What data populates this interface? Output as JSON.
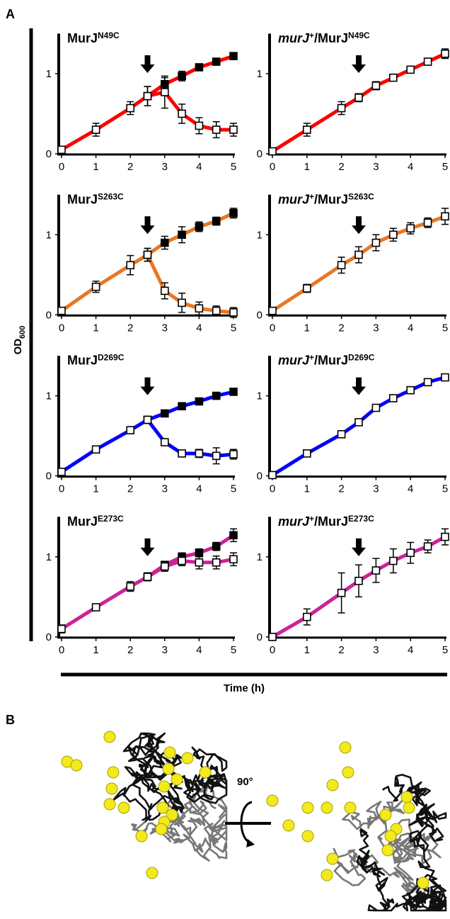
{
  "figure": {
    "panel_labels": [
      "A",
      "B"
    ],
    "y_label": {
      "text": "OD",
      "sub": "600"
    },
    "x_label": "Time (h)",
    "rotation_label": "90°"
  },
  "chart_data": [
    {
      "type": "line",
      "title_parts": [
        {
          "text": "MurJ"
        },
        {
          "text": "N49C",
          "sup": true
        }
      ],
      "x": [
        0,
        1,
        2,
        2.5,
        3,
        3.5,
        4,
        4.5,
        5
      ],
      "xlim": [
        0,
        5
      ],
      "ylim": [
        0,
        1.5
      ],
      "xticks": [
        0,
        1,
        2,
        3,
        4,
        5
      ],
      "yticks": [
        0,
        1
      ],
      "arrow_x": 2.5,
      "color": "#ff0000",
      "series": [
        {
          "marker": "filled",
          "values": [
            null,
            null,
            null,
            0.72,
            0.87,
            0.97,
            1.08,
            1.15,
            1.22
          ],
          "errors": [
            null,
            null,
            null,
            0.12,
            0.08,
            0.06,
            0.04,
            0.03,
            0.03
          ]
        },
        {
          "marker": "open",
          "values": [
            0.05,
            0.3,
            0.57,
            0.72,
            0.77,
            0.5,
            0.35,
            0.3,
            0.3
          ],
          "errors": [
            0.04,
            0.08,
            0.08,
            0.12,
            0.2,
            0.12,
            0.1,
            0.1,
            0.08
          ]
        }
      ]
    },
    {
      "type": "line",
      "title_parts": [
        {
          "text": "murJ",
          "italic": true
        },
        {
          "text": "+",
          "sup": true
        },
        {
          "text": "/MurJ"
        },
        {
          "text": "N49C",
          "sup": true
        }
      ],
      "x": [
        0,
        1,
        2,
        2.5,
        3,
        3.5,
        4,
        4.5,
        5
      ],
      "xlim": [
        0,
        5
      ],
      "ylim": [
        0,
        1.5
      ],
      "xticks": [
        0,
        1,
        2,
        3,
        4,
        5
      ],
      "yticks": [
        0,
        1
      ],
      "arrow_x": 2.5,
      "color": "#ff0000",
      "series": [
        {
          "marker": "open",
          "values": [
            0.03,
            0.3,
            0.57,
            0.7,
            0.85,
            0.95,
            1.05,
            1.15,
            1.25
          ],
          "errors": [
            0.04,
            0.08,
            0.08,
            0.05,
            0.05,
            0.04,
            0.04,
            0.03,
            0.06
          ]
        }
      ]
    },
    {
      "type": "line",
      "title_parts": [
        {
          "text": "MurJ"
        },
        {
          "text": "S263C",
          "sup": true
        }
      ],
      "x": [
        0,
        1,
        2,
        2.5,
        3,
        3.5,
        4,
        4.5,
        5
      ],
      "xlim": [
        0,
        5
      ],
      "ylim": [
        0,
        1.5
      ],
      "xticks": [
        0,
        1,
        2,
        3,
        4,
        5
      ],
      "yticks": [
        0,
        1
      ],
      "arrow_x": 2.5,
      "color": "#e87722",
      "series": [
        {
          "marker": "filled",
          "values": [
            null,
            null,
            null,
            0.75,
            0.9,
            1.0,
            1.1,
            1.17,
            1.27
          ],
          "errors": [
            null,
            null,
            null,
            0.08,
            0.08,
            0.1,
            0.06,
            0.05,
            0.06
          ]
        },
        {
          "marker": "open",
          "values": [
            0.05,
            0.35,
            0.62,
            0.75,
            0.3,
            0.15,
            0.08,
            0.05,
            0.03
          ],
          "errors": [
            0.03,
            0.07,
            0.12,
            0.08,
            0.1,
            0.12,
            0.08,
            0.06,
            0.06
          ]
        }
      ]
    },
    {
      "type": "line",
      "title_parts": [
        {
          "text": "murJ",
          "italic": true
        },
        {
          "text": "+",
          "sup": true
        },
        {
          "text": "/MurJ"
        },
        {
          "text": "S263C",
          "sup": true
        }
      ],
      "x": [
        0,
        1,
        2,
        2.5,
        3,
        3.5,
        4,
        4.5,
        5
      ],
      "xlim": [
        0,
        5
      ],
      "ylim": [
        0,
        1.5
      ],
      "xticks": [
        0,
        1,
        2,
        3,
        4,
        5
      ],
      "yticks": [
        0,
        1
      ],
      "arrow_x": 2.5,
      "color": "#e87722",
      "series": [
        {
          "marker": "open",
          "values": [
            0.05,
            0.33,
            0.62,
            0.75,
            0.9,
            1.0,
            1.08,
            1.15,
            1.23
          ],
          "errors": [
            0.03,
            0.05,
            0.1,
            0.1,
            0.1,
            0.08,
            0.07,
            0.06,
            0.1
          ]
        }
      ]
    },
    {
      "type": "line",
      "title_parts": [
        {
          "text": "MurJ"
        },
        {
          "text": "D269C",
          "sup": true
        }
      ],
      "x": [
        0,
        1,
        2,
        2.5,
        3,
        3.5,
        4,
        4.5,
        5
      ],
      "xlim": [
        0,
        5
      ],
      "ylim": [
        0,
        1.5
      ],
      "xticks": [
        0,
        1,
        2,
        3,
        4,
        5
      ],
      "yticks": [
        0,
        1
      ],
      "arrow_x": 2.5,
      "color": "#0000ff",
      "series": [
        {
          "marker": "filled",
          "values": [
            null,
            null,
            null,
            0.7,
            0.78,
            0.87,
            0.93,
            1.0,
            1.05
          ],
          "errors": [
            null,
            null,
            null,
            0.03,
            0.04,
            0.04,
            0.04,
            0.03,
            0.03
          ]
        },
        {
          "marker": "open",
          "values": [
            0.05,
            0.33,
            0.57,
            0.7,
            0.42,
            0.28,
            0.28,
            0.25,
            0.27
          ],
          "errors": [
            0.02,
            0.03,
            0.03,
            0.03,
            0.03,
            0.04,
            0.05,
            0.1,
            0.06
          ]
        }
      ]
    },
    {
      "type": "line",
      "title_parts": [
        {
          "text": "murJ",
          "italic": true
        },
        {
          "text": "+",
          "sup": true
        },
        {
          "text": "/MurJ"
        },
        {
          "text": "D269C",
          "sup": true
        }
      ],
      "x": [
        0,
        1,
        2,
        2.5,
        3,
        3.5,
        4,
        4.5,
        5
      ],
      "xlim": [
        0,
        5
      ],
      "ylim": [
        0,
        1.5
      ],
      "xticks": [
        0,
        1,
        2,
        3,
        4,
        5
      ],
      "yticks": [
        0,
        1
      ],
      "arrow_x": 2.5,
      "color": "#0000ff",
      "series": [
        {
          "marker": "open",
          "values": [
            0.01,
            0.28,
            0.52,
            0.67,
            0.85,
            0.97,
            1.07,
            1.17,
            1.23
          ],
          "errors": [
            0.02,
            0.03,
            0.03,
            0.03,
            0.03,
            0.03,
            0.03,
            0.03,
            0.03
          ]
        }
      ]
    },
    {
      "type": "line",
      "title_parts": [
        {
          "text": "MurJ"
        },
        {
          "text": "E273C",
          "sup": true
        }
      ],
      "x": [
        0,
        1,
        2,
        2.5,
        3,
        3.5,
        4,
        4.5,
        5
      ],
      "xlim": [
        0,
        5
      ],
      "ylim": [
        0,
        1.5
      ],
      "xticks": [
        0,
        1,
        2,
        3,
        4,
        5
      ],
      "yticks": [
        0,
        1
      ],
      "arrow_x": 2.5,
      "color": "#cc2299",
      "series": [
        {
          "marker": "filled",
          "values": [
            null,
            null,
            null,
            0.75,
            0.9,
            1.0,
            1.05,
            1.13,
            1.27
          ],
          "errors": [
            null,
            null,
            null,
            0.05,
            0.04,
            0.05,
            0.05,
            0.05,
            0.08
          ]
        },
        {
          "marker": "open",
          "values": [
            0.1,
            0.37,
            0.63,
            0.75,
            0.88,
            0.95,
            0.93,
            0.93,
            0.97
          ],
          "errors": [
            0.05,
            0.04,
            0.06,
            0.05,
            0.06,
            0.06,
            0.08,
            0.08,
            0.08
          ]
        }
      ]
    },
    {
      "type": "line",
      "title_parts": [
        {
          "text": "murJ",
          "italic": true
        },
        {
          "text": "+",
          "sup": true
        },
        {
          "text": "/MurJ"
        },
        {
          "text": "E273C",
          "sup": true
        }
      ],
      "x": [
        0,
        1,
        2,
        2.5,
        3,
        3.5,
        4,
        4.5,
        5
      ],
      "xlim": [
        0,
        5
      ],
      "ylim": [
        0,
        1.5
      ],
      "xticks": [
        0,
        1,
        2,
        3,
        4,
        5
      ],
      "yticks": [
        0,
        1
      ],
      "arrow_x": 2.5,
      "color": "#cc2299",
      "series": [
        {
          "marker": "open",
          "values": [
            0.0,
            0.25,
            0.55,
            0.7,
            0.83,
            0.95,
            1.05,
            1.13,
            1.25
          ],
          "errors": [
            0.03,
            0.1,
            0.25,
            0.2,
            0.15,
            0.15,
            0.13,
            0.08,
            0.1
          ]
        }
      ]
    }
  ]
}
